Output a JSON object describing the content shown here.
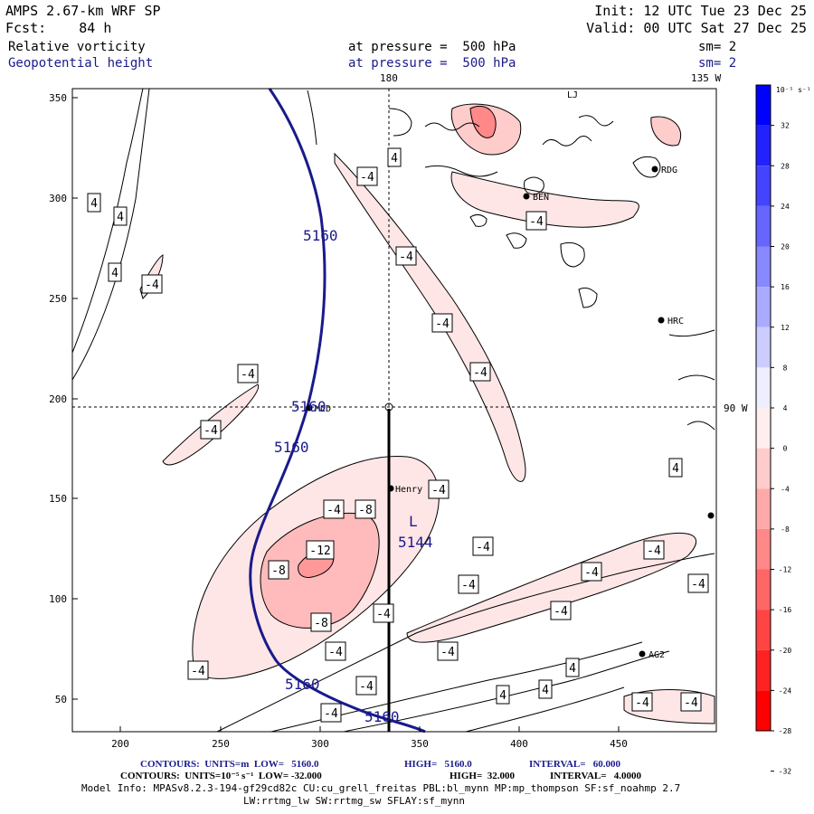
{
  "header": {
    "model": "AMPS 2.67-km WRF SP",
    "forecast": "Fcst:    84 h",
    "init": "Init: 12 UTC Tue 23 Dec 25",
    "valid": "Valid: 00 UTC Sat 27 Dec 25",
    "field1_name": "Relative vorticity",
    "field1_pressure": "at pressure =  500 hPa",
    "field1_smooth": "sm= 2",
    "field2_name": "Geopotential height",
    "field2_pressure": "at pressure =  500 hPa",
    "field2_smooth": "sm= 2"
  },
  "map": {
    "meridian_180": "180",
    "meridian_135w": "135 W",
    "meridian_90w": "90 W",
    "low_symbol": "L",
    "low_value": "5144",
    "height_contour_label": "5160",
    "stations": [
      {
        "name": "RDG"
      },
      {
        "name": "HRC"
      },
      {
        "name": "Henry"
      },
      {
        "name": "AG2"
      },
      {
        "name": "BEN"
      },
      {
        "name": "MCD"
      },
      {
        "name": "LJ"
      }
    ],
    "x_ticks": [
      "200",
      "250",
      "300",
      "350",
      "400",
      "450"
    ],
    "y_ticks": [
      "350",
      "300",
      "250",
      "200",
      "150",
      "100",
      "50"
    ]
  },
  "colorbar": {
    "unit": "10⁻⁵ s⁻¹",
    "labels": [
      "32",
      "28",
      "24",
      "20",
      "16",
      "12",
      "8",
      "4",
      "0",
      "-4",
      "-8",
      "-12",
      "-16",
      "-20",
      "-24",
      "-28",
      "-32"
    ],
    "colors": [
      "#0000ff",
      "#2222ff",
      "#4444ff",
      "#6666ff",
      "#8888ff",
      "#aaaaff",
      "#ccccff",
      "#eeeeff",
      "#ffeeee",
      "#ffcccc",
      "#ffaaaa",
      "#ff8888",
      "#ff6666",
      "#ff4444",
      "#ff2222",
      "#ff0000"
    ]
  },
  "footer": {
    "contours1_label": "CONTOURS:  UNITS=m  LOW=   5160.0",
    "contours1_high": "HIGH=   5160.0",
    "contours1_interval": "INTERVAL=   60.000",
    "contours2_label": "CONTOURS:  UNITS=10⁻⁵ s⁻¹  LOW= -32.000",
    "contours2_high": "HIGH=  32.000",
    "contours2_interval": "INTERVAL=   4.0000",
    "model_info": "Model Info: MPASv8.2.3-194-gf29cd82c CU:cu_grell_freitas PBL:bl_mynn MP:mp_thompson SF:sf_noahmp 2.7",
    "model_info2": "LW:rrtmg_lw SW:rrtmg_sw SFLAY:sf_mynn"
  }
}
